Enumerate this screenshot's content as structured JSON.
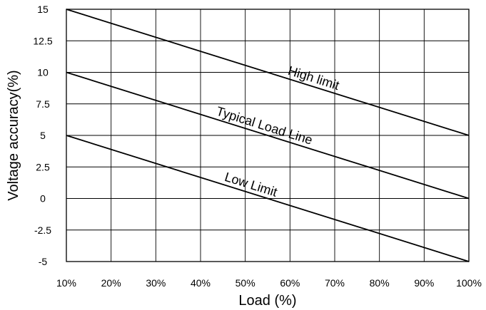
{
  "chart_data": {
    "type": "line",
    "title": "",
    "xlabel": "Load (%)",
    "ylabel": "Voltage accuracy(%)",
    "x": [
      10,
      20,
      30,
      40,
      50,
      60,
      70,
      80,
      90,
      100
    ],
    "x_tick_labels": [
      "10%",
      "20%",
      "30%",
      "40%",
      "50%",
      "60%",
      "70%",
      "80%",
      "90%",
      "100%"
    ],
    "y_tick_labels": [
      "15",
      "12.5",
      "10",
      "7.5",
      "5",
      "2.5",
      "0",
      "-2.5",
      "-5"
    ],
    "xlim": [
      10,
      100
    ],
    "ylim": [
      -5,
      15
    ],
    "grid": true,
    "series": [
      {
        "name": "High limit",
        "x": [
          10,
          100
        ],
        "values": [
          15,
          5
        ]
      },
      {
        "name": "Typical Load Line",
        "x": [
          10,
          100
        ],
        "values": [
          10,
          0
        ]
      },
      {
        "name": "Low Limit",
        "x": [
          10,
          100
        ],
        "values": [
          5,
          -5
        ]
      }
    ],
    "colors": {
      "line": "#000000",
      "grid": "#000000"
    }
  }
}
